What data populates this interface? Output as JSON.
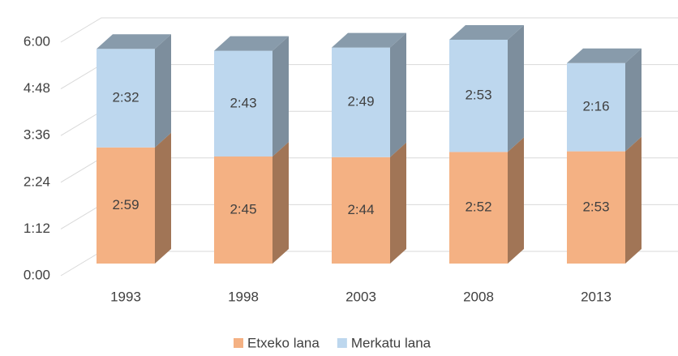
{
  "chart_data": {
    "type": "bar3d_stacked",
    "categories": [
      "1993",
      "1998",
      "2003",
      "2008",
      "2013"
    ],
    "series": [
      {
        "name": "Etxeko lana",
        "color": "#f4b183",
        "values": [
          179,
          165,
          164,
          172,
          173
        ],
        "value_labels": [
          "2:59",
          "2:45",
          "2:44",
          "2:52",
          "2:53"
        ]
      },
      {
        "name": "Merkatu lana",
        "color": "#bdd7ee",
        "values": [
          152,
          163,
          169,
          173,
          136
        ],
        "value_labels": [
          "2:32",
          "2:43",
          "2:49",
          "2:53",
          "2:16"
        ]
      }
    ],
    "ylim": [
      0,
      360
    ],
    "yticks": [
      {
        "value": 0,
        "label": "0:00"
      },
      {
        "value": 72,
        "label": "1:12"
      },
      {
        "value": 144,
        "label": "2:24"
      },
      {
        "value": 216,
        "label": "3:36"
      },
      {
        "value": 288,
        "label": "4:48"
      },
      {
        "value": 360,
        "label": "6:00"
      }
    ],
    "grid": true,
    "legend": "bottom"
  }
}
